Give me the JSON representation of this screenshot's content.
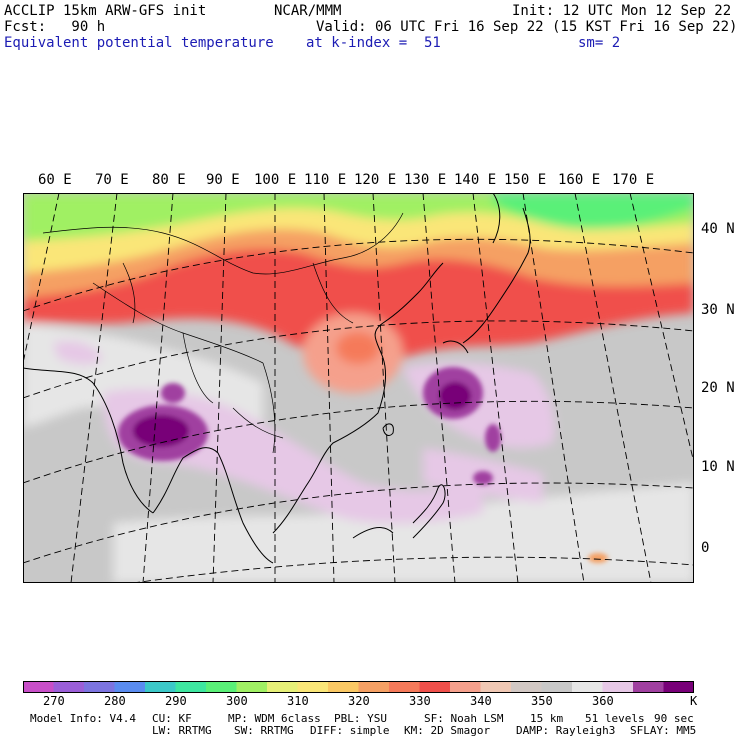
{
  "header": {
    "line1_left": "ACCLIP 15km ARW-GFS init",
    "line1_mid": "NCAR/MMM",
    "line1_right": "Init: 12 UTC Mon 12 Sep 22",
    "line2_left": "Fcst:   90 h",
    "line2_right": "Valid: 06 UTC Fri 16 Sep 22 (15 KST Fri 16 Sep 22)",
    "line3_field": "Equivalent potential temperature",
    "line3_level": "at k-index =  51",
    "line3_smooth": "sm= 2"
  },
  "map": {
    "lon_labels": [
      "60 E",
      "70 E",
      "80 E",
      "90 E",
      "100 E",
      "110 E",
      "120 E",
      "130 E",
      "140 E",
      "150 E",
      "160 E",
      "170 E"
    ],
    "lat_labels": [
      "40 N",
      "30 N",
      "20 N",
      "10 N",
      "0"
    ]
  },
  "colorbar": {
    "colors": [
      "#c84fc8",
      "#9b5fd8",
      "#7c74e0",
      "#5a8cf0",
      "#3cc8c8",
      "#3ee6a0",
      "#5af078",
      "#a0f064",
      "#e6f078",
      "#fae678",
      "#fac864",
      "#f5a064",
      "#f57a5a",
      "#f0504b",
      "#f5a08c",
      "#f0c8b4",
      "#d2c8c4",
      "#c8c8c8",
      "#e6e6e6",
      "#e6c8e6",
      "#a040a0",
      "#780078"
    ],
    "tick_labels": [
      "270",
      "280",
      "290",
      "300",
      "310",
      "320",
      "330",
      "340",
      "350",
      "360"
    ],
    "unit": "K"
  },
  "footer": {
    "line1": [
      "Model Info: V4.4",
      "CU: KF",
      "MP: WDM 6class",
      "PBL: YSU",
      "SF: Noah LSM",
      "15 km",
      "51 levels",
      "90 sec"
    ],
    "line2": [
      "LW: RRTMG",
      "SW: RRTMG",
      "DIFF: simple",
      "KM: 2D Smagor",
      "DAMP: Rayleigh3",
      "SFLAY: MM5"
    ]
  }
}
